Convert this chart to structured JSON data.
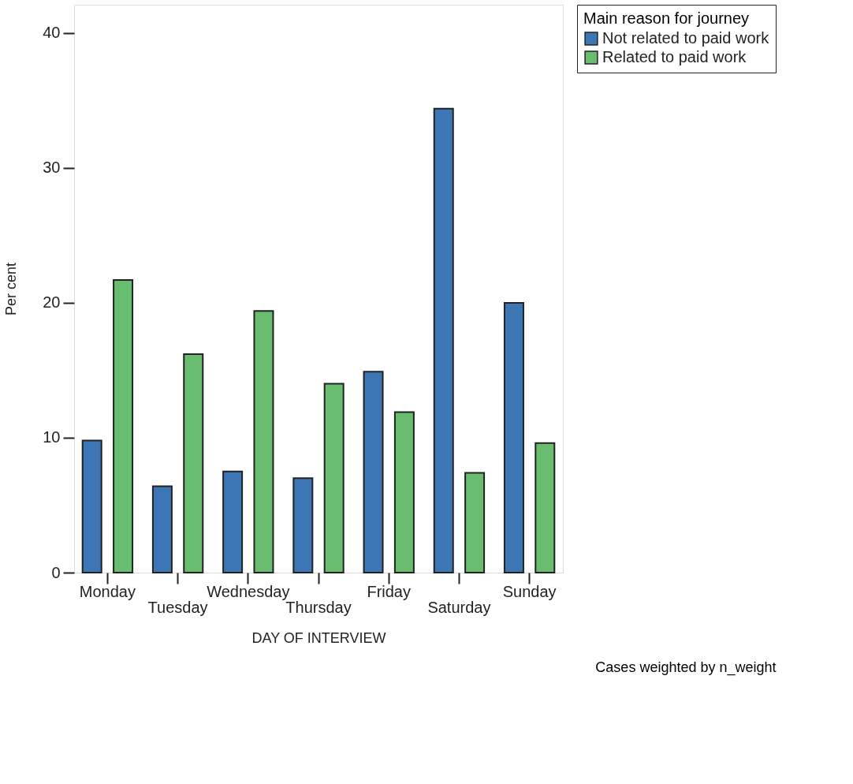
{
  "chart_data": {
    "type": "bar",
    "xlabel": "DAY OF INTERVIEW",
    "ylabel": "Per cent",
    "legend_title": "Main reason for journey",
    "categories": [
      "Monday",
      "Tuesday",
      "Wednesday",
      "Thursday",
      "Friday",
      "Saturday",
      "Sunday"
    ],
    "series": [
      {
        "name": "Not related to paid work",
        "color": "#3d76b5",
        "values": [
          9.8,
          6.4,
          7.5,
          7.0,
          14.9,
          34.4,
          20.0
        ]
      },
      {
        "name": "Related to paid work",
        "color": "#68bd6e",
        "values": [
          21.7,
          16.2,
          19.4,
          14.0,
          11.9,
          7.4,
          9.6
        ]
      }
    ],
    "ylim": [
      0,
      42.1
    ],
    "yticks": [
      0,
      10,
      20,
      30,
      40
    ],
    "grid": false,
    "legend": "top right",
    "annotations": [
      "Cases weighted by n_weight"
    ]
  }
}
